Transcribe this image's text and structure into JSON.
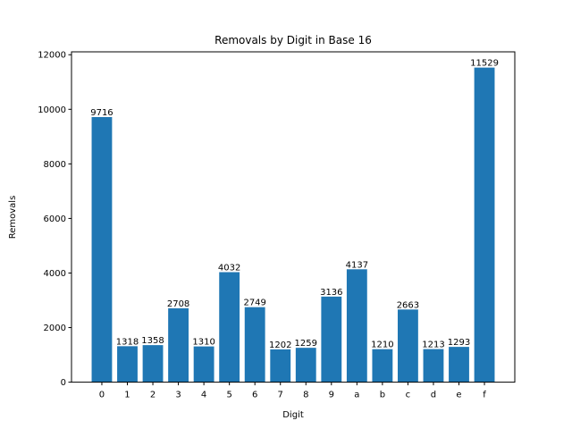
{
  "chart_data": {
    "type": "bar",
    "title": "Removals by Digit in Base 16",
    "xlabel": "Digit",
    "ylabel": "Removals",
    "categories": [
      "0",
      "1",
      "2",
      "3",
      "4",
      "5",
      "6",
      "7",
      "8",
      "9",
      "a",
      "b",
      "c",
      "d",
      "e",
      "f"
    ],
    "values": [
      9716,
      1318,
      1358,
      2708,
      1310,
      4032,
      2749,
      1202,
      1259,
      3136,
      4137,
      1210,
      2663,
      1213,
      1293,
      11529
    ],
    "data_labels": [
      "9716",
      "1318",
      "1358",
      "2708",
      "1310",
      "4032",
      "2749",
      "1202",
      "1259",
      "3136",
      "4137",
      "1210",
      "2663",
      "1213",
      "1293",
      "11529"
    ],
    "ylim": [
      0,
      12106
    ],
    "yticks": [
      0,
      2000,
      4000,
      6000,
      8000,
      10000,
      12000
    ],
    "ytick_labels": [
      "0",
      "2000",
      "4000",
      "6000",
      "8000",
      "10000",
      "12000"
    ],
    "grid": false,
    "bar_color": "#1f77b4"
  }
}
